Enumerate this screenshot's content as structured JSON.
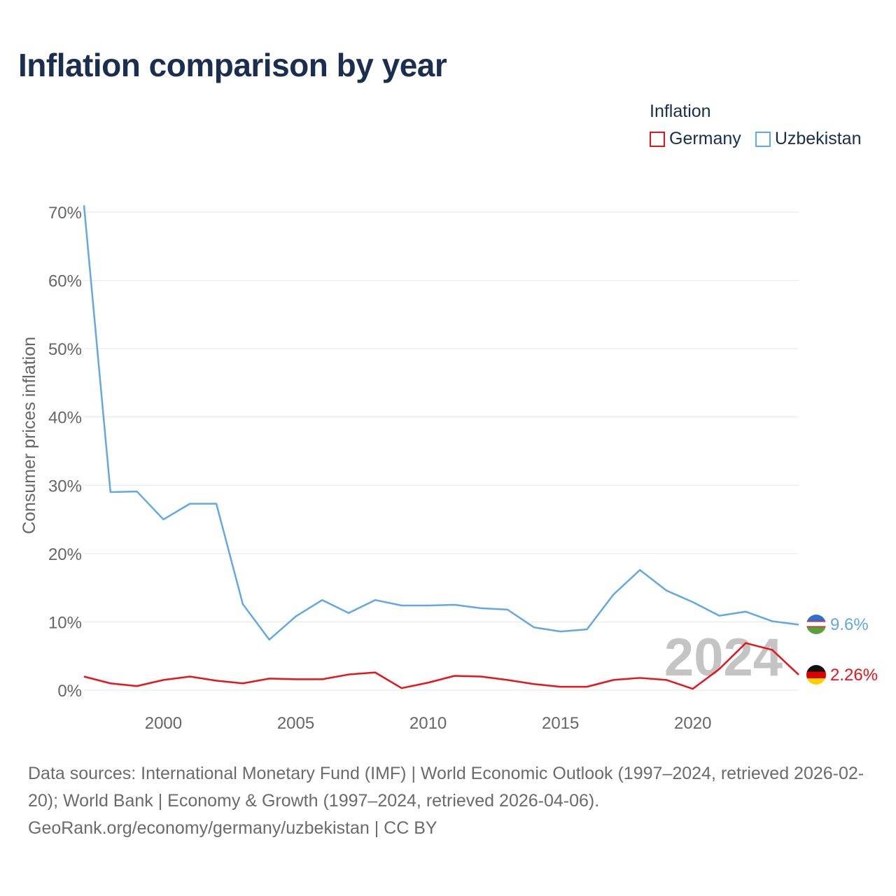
{
  "title": "Inflation comparison by year",
  "legend": {
    "title": "Inflation",
    "items": [
      {
        "label": "Germany",
        "color": "#e8141c"
      },
      {
        "label": "Uzbekistan",
        "color": "#62a8e5"
      }
    ]
  },
  "chart_data": {
    "type": "line",
    "title": "Inflation comparison by year",
    "ylabel": "Consumer prices inflation",
    "xlabel": "",
    "xlim": [
      1997,
      2024
    ],
    "ylim": [
      0,
      70
    ],
    "y_ticks": [
      "0%",
      "10%",
      "20%",
      "30%",
      "40%",
      "50%",
      "60%",
      "70%"
    ],
    "x_ticks": [
      "2000",
      "2005",
      "2010",
      "2015",
      "2020"
    ],
    "year_label": "2024",
    "x": [
      1997,
      1998,
      1999,
      2000,
      2001,
      2002,
      2003,
      2004,
      2005,
      2006,
      2007,
      2008,
      2009,
      2010,
      2011,
      2012,
      2013,
      2014,
      2015,
      2016,
      2017,
      2018,
      2019,
      2020,
      2021,
      2022,
      2023,
      2024
    ],
    "series": [
      {
        "name": "Uzbekistan",
        "color": "#62a8e5",
        "end_label": "9.6%",
        "values": [
          71.0,
          29.0,
          29.1,
          25.0,
          27.3,
          27.3,
          12.6,
          7.4,
          10.8,
          13.2,
          11.3,
          13.2,
          12.4,
          12.4,
          12.5,
          12.0,
          11.8,
          9.2,
          8.6,
          8.9,
          14.0,
          17.6,
          14.6,
          12.9,
          10.9,
          11.5,
          10.1,
          9.6
        ]
      },
      {
        "name": "Germany",
        "color": "#e8141c",
        "end_label": "2.26%",
        "values": [
          2.0,
          1.0,
          0.6,
          1.5,
          2.0,
          1.4,
          1.0,
          1.7,
          1.6,
          1.6,
          2.3,
          2.6,
          0.3,
          1.1,
          2.1,
          2.0,
          1.5,
          0.9,
          0.5,
          0.5,
          1.5,
          1.8,
          1.5,
          0.2,
          3.1,
          6.9,
          5.9,
          2.26
        ]
      }
    ]
  },
  "footer": {
    "sources": "Data sources: International Monetary Fund (IMF) | World Economic Outlook (1997–2024, retrieved 2026-02-20); World Bank | Economy & Growth (1997–2024, retrieved 2026-04-06).",
    "credit": "GeoRank.org/economy/germany/uzbekistan | CC BY"
  }
}
